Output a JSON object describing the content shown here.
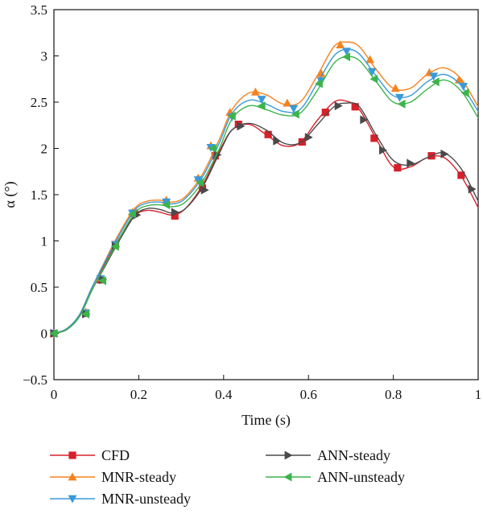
{
  "chart_data": {
    "type": "line",
    "xlabel": "Time (s)",
    "ylabel": "α (°)",
    "xlim": [
      0,
      1
    ],
    "ylim": [
      -0.5,
      3.5
    ],
    "xticks": [
      "0",
      "0.2",
      "0.4",
      "0.6",
      "0.8",
      "1"
    ],
    "yticks": [
      "−0.5",
      "0",
      "0.5",
      "1",
      "1.5",
      "2",
      "2.5",
      "3",
      "3.5"
    ],
    "grid": false,
    "legend_position": "bottom",
    "series": [
      {
        "name": "CFD",
        "color": "#d7202a",
        "marker": "square",
        "x": [
          0,
          0.03,
          0.06,
          0.09,
          0.12,
          0.15,
          0.19,
          0.22,
          0.25,
          0.28,
          0.31,
          0.35,
          0.39,
          0.42,
          0.46,
          0.5,
          0.54,
          0.58,
          0.62,
          0.66,
          0.69,
          0.72,
          0.76,
          0.8,
          0.84,
          0.88,
          0.92,
          0.96,
          1.0
        ],
        "y": [
          0,
          0.05,
          0.2,
          0.5,
          0.75,
          1.0,
          1.27,
          1.33,
          1.31,
          1.28,
          1.35,
          1.6,
          1.97,
          2.2,
          2.26,
          2.15,
          2.03,
          2.06,
          2.3,
          2.5,
          2.51,
          2.42,
          2.1,
          1.8,
          1.8,
          1.9,
          1.9,
          1.7,
          1.36
        ],
        "markers": [
          [
            0,
            0
          ],
          [
            0.075,
            0.22
          ],
          [
            0.11,
            0.58
          ],
          [
            0.145,
            0.96
          ],
          [
            0.19,
            1.3
          ],
          [
            0.285,
            1.27
          ],
          [
            0.35,
            1.57
          ],
          [
            0.38,
            1.92
          ],
          [
            0.435,
            2.26
          ],
          [
            0.505,
            2.15
          ],
          [
            0.585,
            2.07
          ],
          [
            0.64,
            2.39
          ],
          [
            0.71,
            2.45
          ],
          [
            0.755,
            2.11
          ],
          [
            0.81,
            1.79
          ],
          [
            0.89,
            1.92
          ],
          [
            0.96,
            1.71
          ]
        ]
      },
      {
        "name": "MNR-steady",
        "color": "#f5821f",
        "marker": "triangle-up",
        "x": [
          0,
          0.03,
          0.06,
          0.09,
          0.12,
          0.15,
          0.19,
          0.22,
          0.25,
          0.28,
          0.31,
          0.35,
          0.39,
          0.42,
          0.46,
          0.5,
          0.54,
          0.58,
          0.62,
          0.66,
          0.69,
          0.72,
          0.76,
          0.8,
          0.84,
          0.88,
          0.92,
          0.96,
          1.0
        ],
        "y": [
          0,
          0.05,
          0.2,
          0.5,
          0.78,
          1.05,
          1.35,
          1.43,
          1.44,
          1.42,
          1.48,
          1.72,
          2.1,
          2.42,
          2.6,
          2.58,
          2.48,
          2.5,
          2.78,
          3.1,
          3.15,
          3.1,
          2.85,
          2.65,
          2.65,
          2.8,
          2.87,
          2.75,
          2.45
        ],
        "markers": [
          [
            0,
            0
          ],
          [
            0.075,
            0.23
          ],
          [
            0.11,
            0.6
          ],
          [
            0.145,
            0.97
          ],
          [
            0.185,
            1.31
          ],
          [
            0.265,
            1.44
          ],
          [
            0.34,
            1.68
          ],
          [
            0.37,
            2.03
          ],
          [
            0.415,
            2.39
          ],
          [
            0.475,
            2.61
          ],
          [
            0.55,
            2.49
          ],
          [
            0.63,
            2.81
          ],
          [
            0.675,
            3.12
          ],
          [
            0.745,
            2.96
          ],
          [
            0.805,
            2.65
          ],
          [
            0.885,
            2.82
          ],
          [
            0.955,
            2.74
          ]
        ]
      },
      {
        "name": "MNR-unsteady",
        "color": "#3a9ad9",
        "marker": "triangle-down",
        "x": [
          0,
          0.03,
          0.06,
          0.09,
          0.12,
          0.15,
          0.19,
          0.22,
          0.25,
          0.28,
          0.31,
          0.35,
          0.39,
          0.42,
          0.46,
          0.5,
          0.54,
          0.58,
          0.62,
          0.66,
          0.69,
          0.72,
          0.76,
          0.8,
          0.84,
          0.88,
          0.92,
          0.96,
          1.0
        ],
        "y": [
          0,
          0.05,
          0.2,
          0.5,
          0.77,
          1.03,
          1.33,
          1.41,
          1.42,
          1.4,
          1.46,
          1.69,
          2.06,
          2.38,
          2.52,
          2.48,
          2.4,
          2.42,
          2.7,
          3.0,
          3.07,
          3.02,
          2.78,
          2.57,
          2.57,
          2.72,
          2.8,
          2.68,
          2.4
        ],
        "markers": [
          [
            0,
            0
          ],
          [
            0.075,
            0.22
          ],
          [
            0.11,
            0.59
          ],
          [
            0.145,
            0.96
          ],
          [
            0.185,
            1.3
          ],
          [
            0.265,
            1.42
          ],
          [
            0.34,
            1.66
          ],
          [
            0.37,
            2.01
          ],
          [
            0.42,
            2.34
          ],
          [
            0.49,
            2.53
          ],
          [
            0.565,
            2.43
          ],
          [
            0.63,
            2.73
          ],
          [
            0.69,
            3.05
          ],
          [
            0.75,
            2.83
          ],
          [
            0.815,
            2.55
          ],
          [
            0.895,
            2.78
          ],
          [
            0.965,
            2.67
          ]
        ]
      },
      {
        "name": "ANN-steady",
        "color": "#4a4a4a",
        "marker": "triangle-right",
        "x": [
          0,
          0.03,
          0.06,
          0.09,
          0.12,
          0.15,
          0.19,
          0.22,
          0.25,
          0.28,
          0.31,
          0.35,
          0.39,
          0.42,
          0.46,
          0.5,
          0.54,
          0.58,
          0.62,
          0.66,
          0.69,
          0.72,
          0.76,
          0.8,
          0.84,
          0.88,
          0.92,
          0.96,
          1.0
        ],
        "y": [
          0,
          0.04,
          0.18,
          0.47,
          0.72,
          0.97,
          1.27,
          1.35,
          1.34,
          1.3,
          1.35,
          1.58,
          1.95,
          2.2,
          2.27,
          2.2,
          2.06,
          2.06,
          2.25,
          2.45,
          2.49,
          2.45,
          2.14,
          1.87,
          1.82,
          1.9,
          1.95,
          1.78,
          1.43
        ],
        "markers": [
          [
            0,
            0
          ],
          [
            0.075,
            0.21
          ],
          [
            0.115,
            0.58
          ],
          [
            0.145,
            0.94
          ],
          [
            0.195,
            1.28
          ],
          [
            0.285,
            1.31
          ],
          [
            0.355,
            1.55
          ],
          [
            0.385,
            1.93
          ],
          [
            0.44,
            2.24
          ],
          [
            0.525,
            2.08
          ],
          [
            0.6,
            2.12
          ],
          [
            0.67,
            2.46
          ],
          [
            0.73,
            2.31
          ],
          [
            0.775,
            1.98
          ],
          [
            0.84,
            1.84
          ],
          [
            0.92,
            1.94
          ],
          [
            0.985,
            1.56
          ]
        ]
      },
      {
        "name": "ANN-unsteady",
        "color": "#3cb44b",
        "marker": "triangle-left",
        "x": [
          0,
          0.03,
          0.06,
          0.09,
          0.12,
          0.15,
          0.19,
          0.22,
          0.25,
          0.28,
          0.31,
          0.35,
          0.39,
          0.42,
          0.46,
          0.5,
          0.54,
          0.58,
          0.62,
          0.66,
          0.69,
          0.72,
          0.76,
          0.8,
          0.84,
          0.88,
          0.92,
          0.96,
          1.0
        ],
        "y": [
          0,
          0.04,
          0.18,
          0.47,
          0.73,
          0.99,
          1.3,
          1.38,
          1.39,
          1.37,
          1.42,
          1.64,
          2.0,
          2.32,
          2.46,
          2.42,
          2.36,
          2.38,
          2.62,
          2.92,
          2.99,
          2.95,
          2.72,
          2.5,
          2.5,
          2.64,
          2.74,
          2.62,
          2.33
        ],
        "markers": [
          [
            0,
            0
          ],
          [
            0.075,
            0.21
          ],
          [
            0.115,
            0.57
          ],
          [
            0.145,
            0.94
          ],
          [
            0.185,
            1.29
          ],
          [
            0.265,
            1.39
          ],
          [
            0.345,
            1.63
          ],
          [
            0.375,
            2.0
          ],
          [
            0.42,
            2.35
          ],
          [
            0.49,
            2.46
          ],
          [
            0.57,
            2.37
          ],
          [
            0.625,
            2.7
          ],
          [
            0.69,
            2.99
          ],
          [
            0.755,
            2.75
          ],
          [
            0.82,
            2.48
          ],
          [
            0.9,
            2.72
          ],
          [
            0.97,
            2.6
          ]
        ]
      }
    ]
  }
}
